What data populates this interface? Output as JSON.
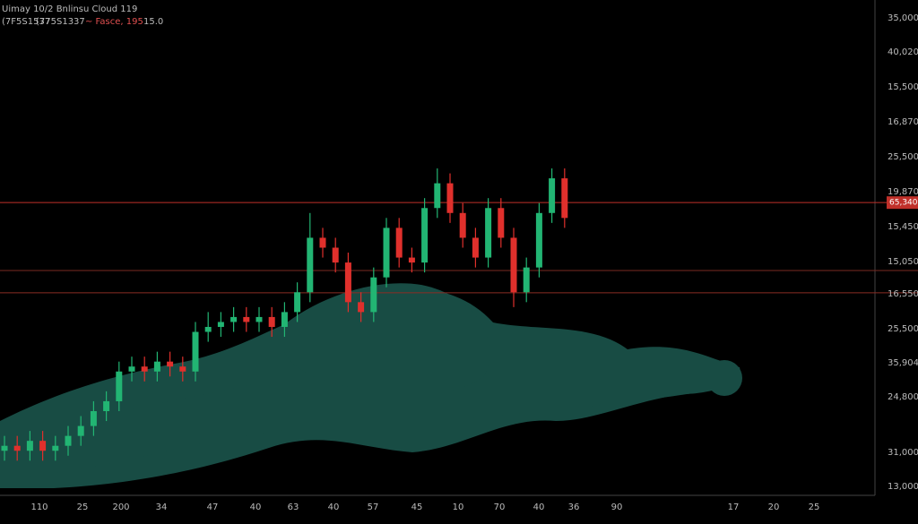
{
  "chart_data": {
    "type": "candlestick",
    "title": "Uimay 10/2 Bnlinsu Cloud 119",
    "subtitle": [
      "(7F5S1537",
      "(775S1337",
      "~ Fasce, 195",
      "15.0"
    ],
    "ylim": [
      0,
      100
    ],
    "open": [
      9,
      10,
      9,
      11,
      9,
      10,
      12,
      14,
      17,
      19,
      25,
      26,
      25,
      27,
      26,
      25,
      33,
      34,
      35,
      36,
      35,
      36,
      34,
      37,
      41,
      52,
      50,
      47,
      39,
      37,
      44,
      54,
      48,
      47,
      58,
      63,
      57,
      52,
      48,
      58,
      52,
      41,
      46,
      57,
      64
    ],
    "high": [
      12,
      12,
      13,
      13,
      12,
      14,
      16,
      19,
      21,
      27,
      28,
      28,
      29,
      29,
      28,
      35,
      37,
      37,
      38,
      38,
      38,
      38,
      39,
      43,
      57,
      54,
      52,
      49,
      41,
      46,
      56,
      56,
      50,
      60,
      66,
      65,
      59,
      54,
      60,
      60,
      54,
      48,
      59,
      66,
      66
    ],
    "low": [
      7,
      7,
      7,
      7,
      7,
      8,
      10,
      12,
      15,
      17,
      23,
      23,
      23,
      24,
      23,
      23,
      31,
      32,
      33,
      33,
      33,
      32,
      32,
      35,
      39,
      48,
      45,
      37,
      35,
      35,
      42,
      46,
      45,
      45,
      56,
      55,
      50,
      46,
      46,
      50,
      38,
      39,
      44,
      55,
      54
    ],
    "close": [
      10,
      9,
      11,
      9,
      10,
      12,
      14,
      17,
      19,
      25,
      26,
      25,
      27,
      26,
      25,
      33,
      34,
      35,
      36,
      35,
      36,
      34,
      37,
      41,
      52,
      50,
      47,
      39,
      37,
      44,
      54,
      48,
      47,
      58,
      63,
      57,
      52,
      48,
      58,
      52,
      41,
      46,
      57,
      64,
      56
    ],
    "up_color": "#22b573",
    "down_color": "#e0302c",
    "levels": [
      {
        "value": 59.1,
        "color": "#c0302a"
      },
      {
        "value": 45.4,
        "color": "#7a2a22"
      },
      {
        "value": 40.9,
        "color": "#8a2c24"
      }
    ],
    "price_tag": "65,340",
    "y_labels": [
      "35,000",
      "40,020",
      "15,500",
      "16,870",
      "25,500",
      "19,870",
      "15,450",
      "15,050",
      "16,550",
      "25,500",
      "35,904",
      "24,800",
      "31,000",
      "13,000"
    ],
    "x_labels": [
      "110",
      "25",
      "200",
      "34",
      "47",
      "40",
      "63",
      "40",
      "57",
      "45",
      "10",
      "70",
      "40",
      "36",
      "90",
      "17",
      "20",
      "25"
    ]
  }
}
